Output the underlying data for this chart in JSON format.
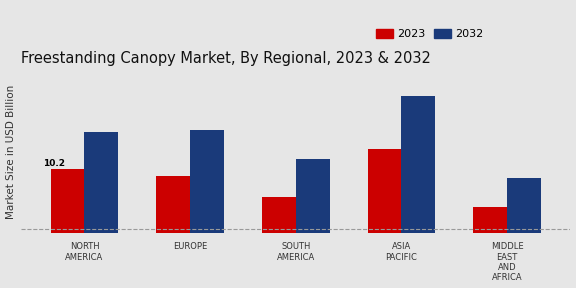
{
  "title": "Freestanding Canopy Market, By Regional, 2023 & 2032",
  "ylabel": "Market Size in USD Billion",
  "categories": [
    "NORTH\nAMERICA",
    "EUROPE",
    "SOUTH\nAMERICA",
    "ASIA\nPACIFIC",
    "MIDDLE\nEAST\nAND\nAFRICA"
  ],
  "values_2023": [
    10.2,
    9.7,
    8.0,
    11.8,
    7.2
  ],
  "values_2032": [
    13.2,
    13.3,
    11.0,
    16.0,
    9.5
  ],
  "color_2023": "#cc0000",
  "color_2032": "#1a3a7a",
  "bar_width": 0.32,
  "annotation_text": "10.2",
  "annotation_index": 0,
  "background_color": "#e6e6e6",
  "legend_labels": [
    "2023",
    "2032"
  ],
  "title_fontsize": 10.5,
  "axis_label_fontsize": 7.5,
  "tick_label_fontsize": 6.0,
  "legend_fontsize": 8,
  "ymin": 5.5,
  "ymax": 18.0,
  "hline_y": 5.5
}
